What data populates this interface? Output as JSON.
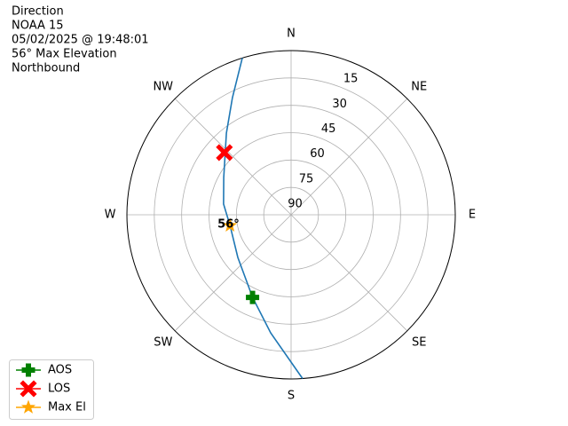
{
  "chart_data": {
    "type": "polar",
    "title_lines": [
      "Direction",
      "NOAA 15",
      "05/02/2025 @ 19:48:01",
      "56° Max Elevation",
      "Northbound"
    ],
    "directions": [
      "N",
      "NE",
      "E",
      "SE",
      "S",
      "SW",
      "W",
      "NW"
    ],
    "rlim": [
      90,
      0
    ],
    "rticks": [
      15,
      30,
      45,
      60,
      75,
      90
    ],
    "grid": true,
    "track": {
      "color": "#1f77b4",
      "azimuth": [
        342.7,
        333.4,
        321.6,
        299,
        279,
        260,
        231.3,
        205,
        189.8,
        176
      ],
      "elevation": [
        0,
        18.2,
        32.9,
        47.8,
        52.5,
        56,
        52.6,
        40,
        24.3,
        0
      ]
    },
    "markers": [
      {
        "name": "AOS",
        "color": "green",
        "marker": "plus",
        "azimuth": 205,
        "elevation": 40
      },
      {
        "name": "LOS",
        "color": "red",
        "marker": "x",
        "azimuth": 313,
        "elevation": 40
      },
      {
        "name": "Max El",
        "color": "orange",
        "marker": "star",
        "azimuth": 260,
        "elevation": 56
      }
    ],
    "annotation": "56°",
    "legend": "lower left"
  }
}
